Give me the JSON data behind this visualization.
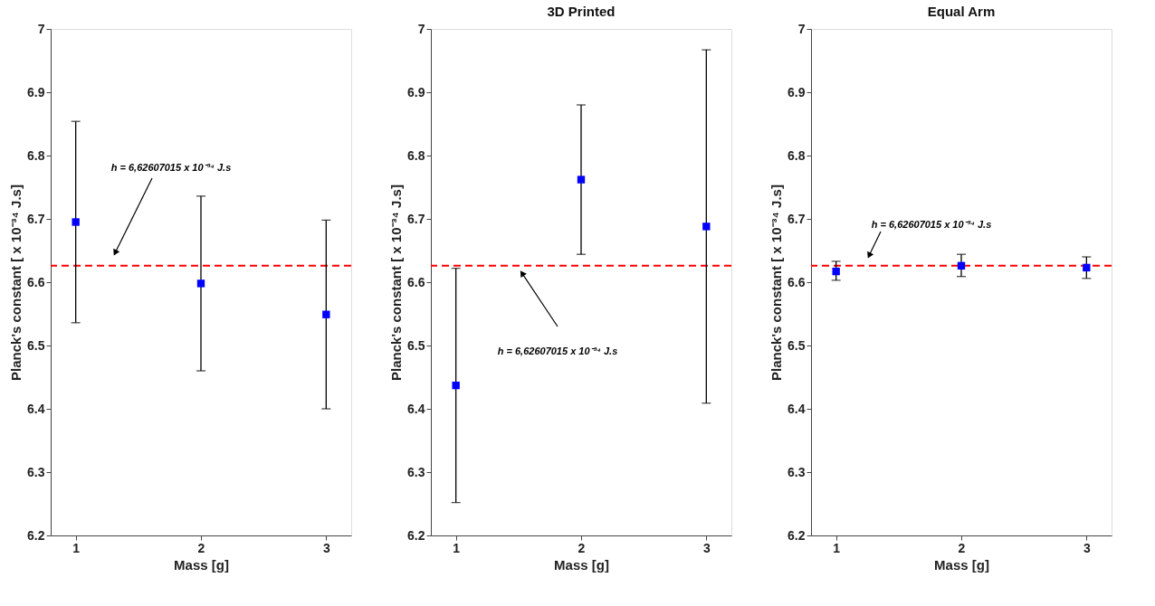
{
  "chart_data": [
    {
      "type": "scatter",
      "xlabel": "Mass [g]",
      "ylabel": "Planck's constant [ x 10⁻³⁴ J.s]",
      "xlim": [
        0.8,
        3.2
      ],
      "xticks": [
        1,
        2,
        3
      ],
      "ylim": [
        6.2,
        7
      ],
      "yticks": [
        6.2,
        6.3,
        6.4,
        6.5,
        6.6,
        6.7,
        6.8,
        6.9,
        7
      ],
      "grid": false,
      "marker": "square",
      "series": [
        {
          "color": "#0000ff",
          "x": [
            1,
            2,
            3
          ],
          "values": [
            6.695,
            6.598,
            6.549
          ],
          "errors": [
            [
              6.536,
              6.854
            ],
            [
              6.46,
              6.736
            ],
            [
              6.4,
              6.698
            ]
          ]
        }
      ],
      "ref_lines": [
        {
          "axis": "y",
          "value": 6.62607015,
          "color": "#ff0000",
          "line_style": "dashed"
        }
      ],
      "annotations": [
        "h = 6,62607015 x 10⁻³⁴ J.s"
      ]
    },
    {
      "type": "scatter",
      "title": "3D Printed",
      "xlabel": "Mass [g]",
      "ylabel": "Planck's constant [ x 10⁻³⁴ J.s]",
      "xlim": [
        0.8,
        3.2
      ],
      "xticks": [
        1,
        2,
        3
      ],
      "ylim": [
        6.2,
        7
      ],
      "yticks": [
        6.2,
        6.3,
        6.4,
        6.5,
        6.6,
        6.7,
        6.8,
        6.9,
        7
      ],
      "grid": false,
      "marker": "square",
      "series": [
        {
          "color": "#0000ff",
          "x": [
            1,
            2,
            3
          ],
          "values": [
            6.437,
            6.762,
            6.688
          ],
          "errors": [
            [
              6.252,
              6.622
            ],
            [
              6.644,
              6.88
            ],
            [
              6.409,
              6.967
            ]
          ]
        }
      ],
      "ref_lines": [
        {
          "axis": "y",
          "value": 6.62607015,
          "color": "#ff0000",
          "line_style": "dashed"
        }
      ],
      "annotations": [
        "h = 6,62607015 x 10⁻³⁴ J.s"
      ]
    },
    {
      "type": "scatter",
      "title": "Equal Arm",
      "xlabel": "Mass [g]",
      "ylabel": "Planck's constant [ x 10⁻³⁴ J.s]",
      "xlim": [
        0.8,
        3.2
      ],
      "xticks": [
        1,
        2,
        3
      ],
      "ylim": [
        6.2,
        7
      ],
      "yticks": [
        6.2,
        6.3,
        6.4,
        6.5,
        6.6,
        6.7,
        6.8,
        6.9,
        7
      ],
      "grid": false,
      "marker": "square",
      "series": [
        {
          "color": "#0000ff",
          "x": [
            1,
            2,
            3
          ],
          "values": [
            6.617,
            6.626,
            6.623
          ],
          "errors": [
            [
              6.603,
              6.633
            ],
            [
              6.609,
              6.644
            ],
            [
              6.606,
              6.64
            ]
          ]
        }
      ],
      "ref_lines": [
        {
          "axis": "y",
          "value": 6.62607015,
          "color": "#ff0000",
          "line_style": "dashed"
        }
      ],
      "annotations": [
        "h = 6,62607015 x 10⁻³⁴ J.s"
      ]
    }
  ]
}
